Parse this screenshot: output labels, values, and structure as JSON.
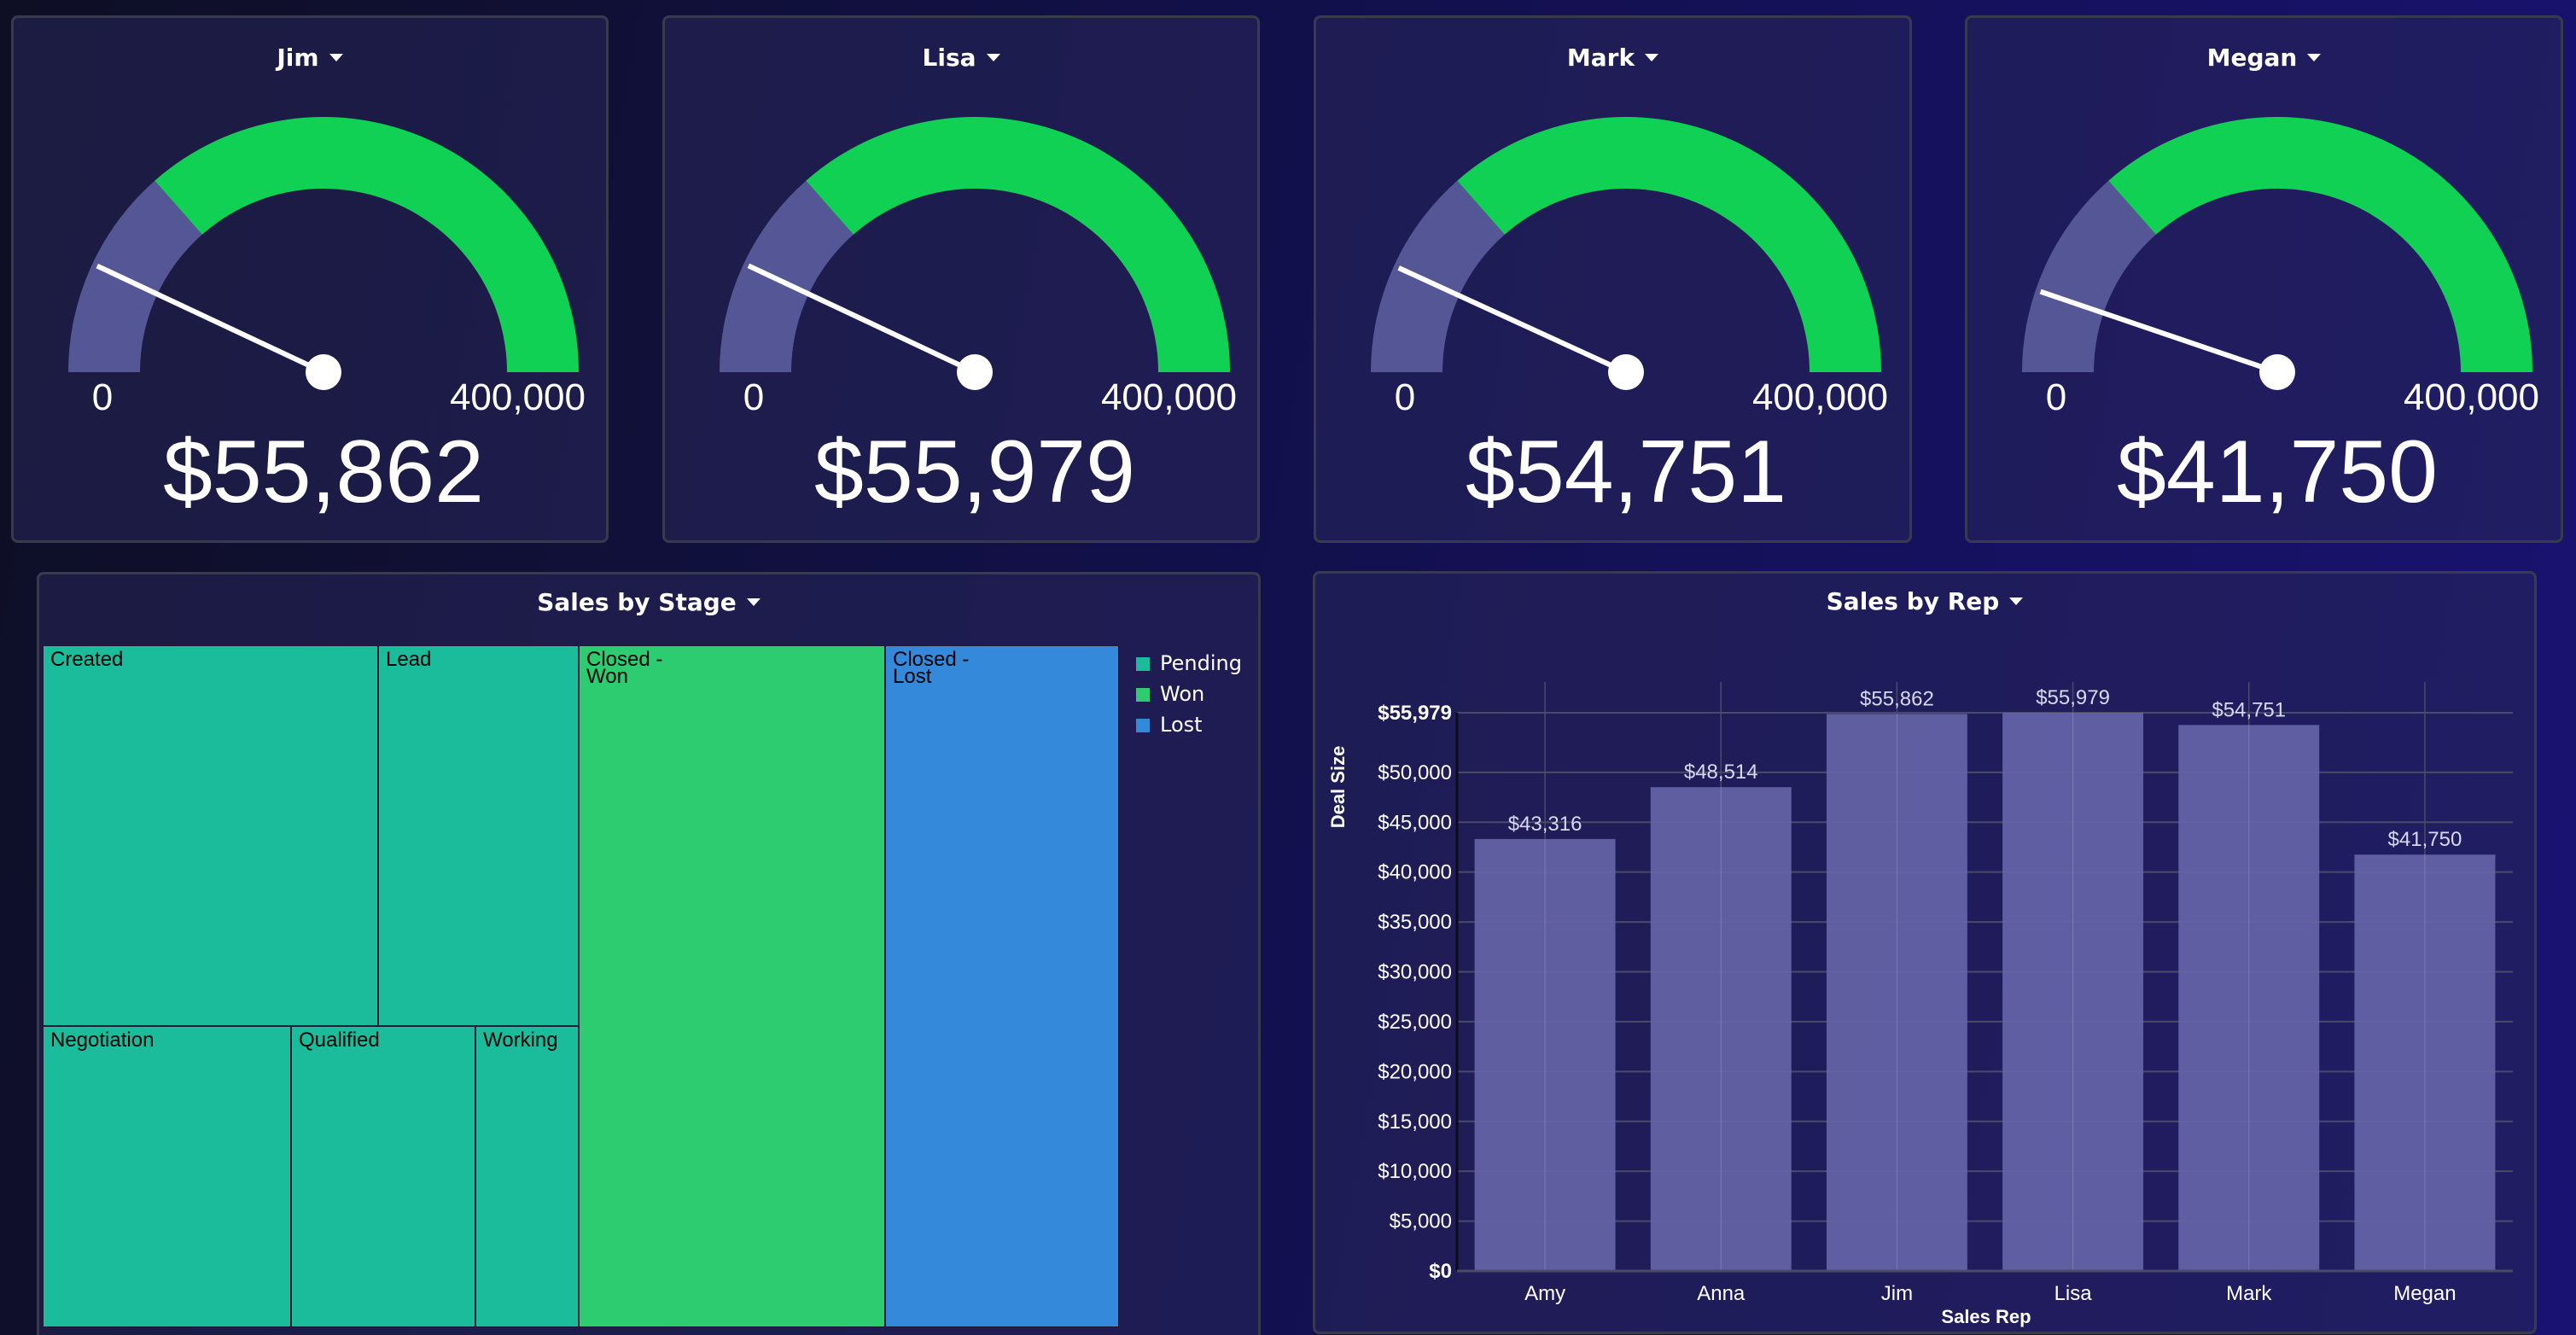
{
  "gauges": [
    {
      "title": "Jim",
      "value": 55862,
      "value_label": "$55,862",
      "min_label": "0",
      "max_label": "400,000",
      "min": 0,
      "max": 400000,
      "band_split": 108000
    },
    {
      "title": "Lisa",
      "value": 55979,
      "value_label": "$55,979",
      "min_label": "0",
      "max_label": "400,000",
      "min": 0,
      "max": 400000,
      "band_split": 108000
    },
    {
      "title": "Mark",
      "value": 54751,
      "value_label": "$54,751",
      "min_label": "0",
      "max_label": "400,000",
      "min": 0,
      "max": 400000,
      "band_split": 108000
    },
    {
      "title": "Megan",
      "value": 41750,
      "value_label": "$41,750",
      "min_label": "0",
      "max_label": "400,000",
      "min": 0,
      "max": 400000,
      "band_split": 108000
    }
  ],
  "colors": {
    "gauge_low": "#555696",
    "gauge_high": "#11d155",
    "pending": "#1abc9c",
    "won": "#2ecc71",
    "lost": "#3489da",
    "bar": "#6362a5"
  },
  "treemap": {
    "title": "Sales by Stage",
    "legend": [
      {
        "label": "Pending",
        "key": "pending"
      },
      {
        "label": "Won",
        "key": "won"
      },
      {
        "label": "Lost",
        "key": "lost"
      }
    ],
    "cells": [
      {
        "label_lines": [
          "Created"
        ],
        "group": "pending"
      },
      {
        "label_lines": [
          "Lead"
        ],
        "group": "pending"
      },
      {
        "label_lines": [
          "Negotiation"
        ],
        "group": "pending"
      },
      {
        "label_lines": [
          "Qualified"
        ],
        "group": "pending"
      },
      {
        "label_lines": [
          "Working"
        ],
        "group": "pending"
      },
      {
        "label_lines": [
          "Closed -",
          "Won"
        ],
        "group": "won"
      },
      {
        "label_lines": [
          "Closed -",
          "Lost"
        ],
        "group": "lost"
      }
    ]
  },
  "chart_data": {
    "type": "bar",
    "title": "Sales by Rep",
    "xlabel": "Sales Rep",
    "ylabel": "Deal Size",
    "categories": [
      "Amy",
      "Anna",
      "Jim",
      "Lisa",
      "Mark",
      "Megan"
    ],
    "values": [
      43316,
      48514,
      55862,
      55979,
      54751,
      41750
    ],
    "value_labels": [
      "$43,316",
      "$48,514",
      "$55,862",
      "$55,979",
      "$54,751",
      "$41,750"
    ],
    "ylim": [
      0,
      55979
    ],
    "yticks": [
      0,
      5000,
      10000,
      15000,
      20000,
      25000,
      30000,
      35000,
      40000,
      45000,
      50000,
      55979
    ],
    "ytick_labels": [
      "$0",
      "$5,000",
      "$10,000",
      "$15,000",
      "$20,000",
      "$25,000",
      "$30,000",
      "$35,000",
      "$40,000",
      "$45,000",
      "$50,000",
      "$55,979"
    ],
    "grid": true
  }
}
